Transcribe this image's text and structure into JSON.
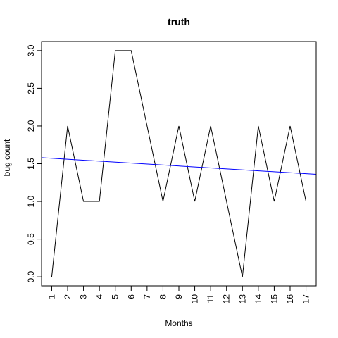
{
  "chart_data": {
    "type": "line",
    "title": "truth",
    "xlabel": "Months",
    "ylabel": "bug count",
    "x": [
      1,
      2,
      3,
      4,
      5,
      6,
      7,
      8,
      9,
      10,
      11,
      12,
      13,
      14,
      15,
      16,
      17
    ],
    "x_tick_labels": [
      "1",
      "2",
      "3",
      "4",
      "5",
      "6",
      "7",
      "8",
      "9",
      "10",
      "11",
      "12",
      "13",
      "14",
      "15",
      "16",
      "17"
    ],
    "y_tick_labels": [
      "0.0",
      "0.5",
      "1.0",
      "1.5",
      "2.0",
      "2.5",
      "3.0"
    ],
    "y_ticks": [
      0,
      0.5,
      1.0,
      1.5,
      2.0,
      2.5,
      3.0
    ],
    "xlim": [
      0.36,
      17.64
    ],
    "ylim": [
      -0.12,
      3.12
    ],
    "series": [
      {
        "values": [
          0,
          2,
          1,
          1,
          3,
          3,
          2,
          1,
          2,
          1,
          2,
          1,
          0,
          2,
          1,
          2,
          1
        ],
        "color": "#000000"
      }
    ],
    "trend_line": {
      "color": "#0000ff",
      "x": [
        0.36,
        17.64
      ],
      "y": [
        1.58,
        1.36
      ]
    },
    "grid": false,
    "legend": "none"
  }
}
